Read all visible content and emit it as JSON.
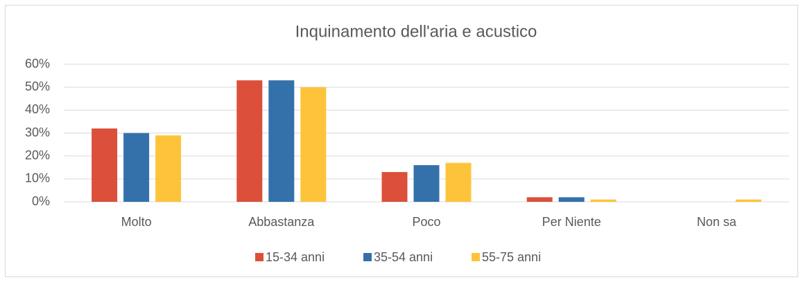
{
  "chart_data": {
    "type": "bar",
    "title": "Inquinamento dell'aria e acustico",
    "categories": [
      "Molto",
      "Abbastanza",
      "Poco",
      "Per Niente",
      "Non sa"
    ],
    "series": [
      {
        "name": "15-34 anni",
        "color": "#dc4f3a",
        "values": [
          32,
          53,
          13,
          2,
          0
        ]
      },
      {
        "name": "35-54 anni",
        "color": "#3471ab",
        "values": [
          30,
          53,
          16,
          2,
          0
        ]
      },
      {
        "name": "55-75 anni",
        "color": "#fdc43b",
        "values": [
          29,
          50,
          17,
          1,
          1
        ]
      }
    ],
    "ylim": [
      0,
      60
    ],
    "yticks": [
      {
        "value": 0,
        "label": "0%"
      },
      {
        "value": 10,
        "label": "10%"
      },
      {
        "value": 20,
        "label": "20%"
      },
      {
        "value": 30,
        "label": "30%"
      },
      {
        "value": 40,
        "label": "40%"
      },
      {
        "value": 50,
        "label": "50%"
      },
      {
        "value": 60,
        "label": "60%"
      }
    ],
    "grid": true,
    "legend": "bottom"
  }
}
